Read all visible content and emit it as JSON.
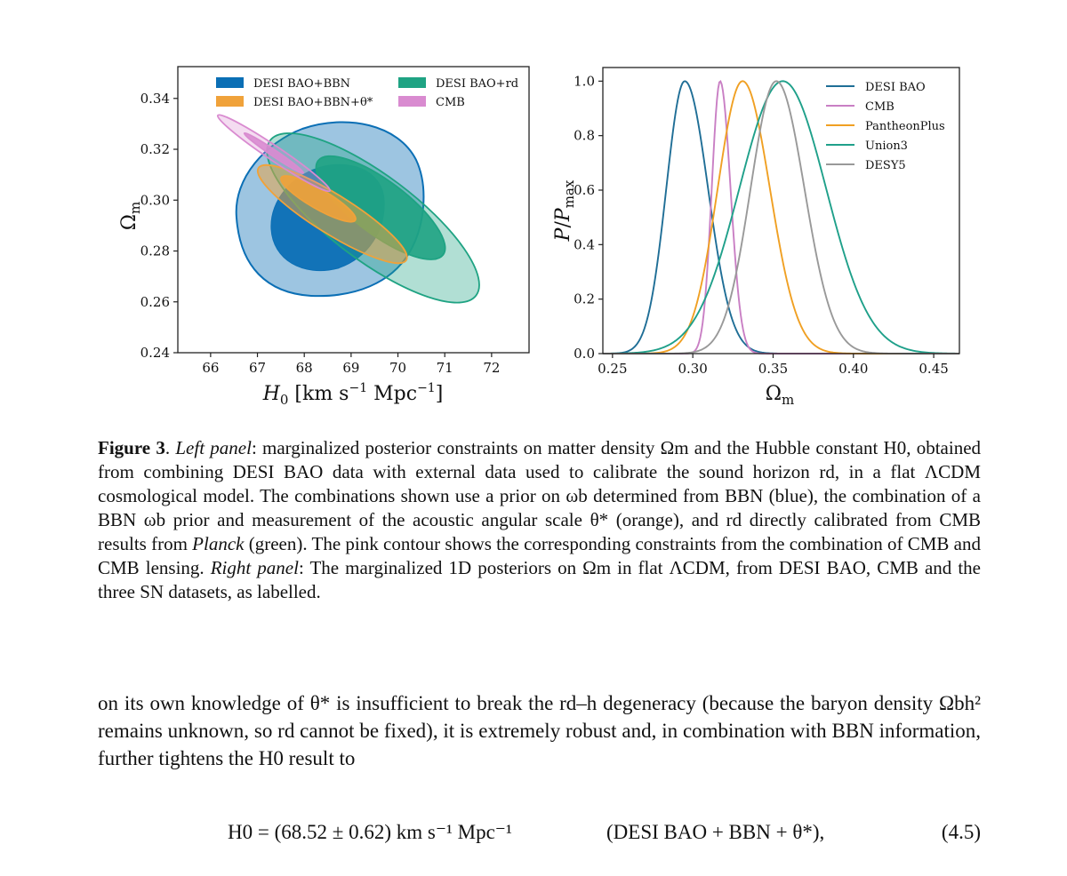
{
  "left_panel": {
    "xlabel": "H₀ [km s⁻¹ Mpc⁻¹]",
    "ylabel": "Ωm",
    "xticks": [
      "66",
      "67",
      "68",
      "69",
      "70",
      "71",
      "72"
    ],
    "yticks": [
      "0.24",
      "0.26",
      "0.28",
      "0.30",
      "0.32",
      "0.34"
    ],
    "legend": [
      "DESI BAO+BBN",
      "DESI BAO+BBN+θ*",
      "DESI BAO+rd",
      "CMB"
    ],
    "colors": {
      "blue": "#0b6fb5",
      "orange": "#f0a23a",
      "green": "#1fa383",
      "pink": "#d98bd0"
    }
  },
  "right_panel": {
    "xlabel": "Ωm",
    "ylabel": "P/Pmax",
    "xticks": [
      "0.25",
      "0.30",
      "0.35",
      "0.40",
      "0.45"
    ],
    "yticks": [
      "0.0",
      "0.2",
      "0.4",
      "0.6",
      "0.8",
      "1.0"
    ],
    "legend": [
      "DESI BAO",
      "CMB",
      "PantheonPlus",
      "Union3",
      "DESY5"
    ]
  },
  "chart_data": [
    {
      "type": "scatter",
      "subtype": "contour",
      "xlabel": "H0 [km s^-1 Mpc^-1]",
      "ylabel": "Ωm",
      "xlim": [
        65.3,
        72.8
      ],
      "ylim": [
        0.24,
        0.3525
      ],
      "series": [
        {
          "name": "DESI BAO+BBN",
          "color": "#0b6fb5",
          "center": [
            68.5,
            0.2955
          ],
          "h0_range_outer": [
            65.6,
            71.4
          ],
          "om_range_outer": [
            0.258,
            0.332
          ]
        },
        {
          "name": "DESI BAO+BBN+θ*",
          "color": "#f0a23a",
          "center": [
            68.52,
            0.298
          ],
          "h0_range_outer": [
            66.9,
            70.1
          ],
          "om_range_outer": [
            0.276,
            0.313
          ]
        },
        {
          "name": "DESI BAO+rd",
          "color": "#1fa383",
          "center": [
            69.4,
            0.293
          ],
          "h0_range_outer": [
            67.2,
            71.6
          ],
          "om_range_outer": [
            0.262,
            0.329
          ]
        },
        {
          "name": "CMB",
          "color": "#d98bd0",
          "center": [
            67.3,
            0.318
          ],
          "h0_range_outer": [
            66.0,
            68.6
          ],
          "om_range_outer": [
            0.302,
            0.334
          ]
        }
      ]
    },
    {
      "type": "line",
      "xlabel": "Ωm",
      "ylabel": "P/Pmax",
      "xlim": [
        0.244,
        0.466
      ],
      "ylim": [
        0.0,
        1.05
      ],
      "series": [
        {
          "name": "DESI BAO",
          "color": "#1f6e96",
          "peak": 0.295,
          "sigma_left": 0.0115,
          "sigma_right": 0.0145
        },
        {
          "name": "CMB",
          "color": "#c97fc4",
          "peak": 0.317,
          "sigma_left": 0.0052,
          "sigma_right": 0.0065
        },
        {
          "name": "PantheonPlus",
          "color": "#f0a023",
          "peak": 0.331,
          "sigma_left": 0.0155,
          "sigma_right": 0.017
        },
        {
          "name": "Union3",
          "color": "#1fa08a",
          "peak": 0.356,
          "sigma_left": 0.027,
          "sigma_right": 0.027
        },
        {
          "name": "DESY5",
          "color": "#999999",
          "peak": 0.352,
          "sigma_left": 0.016,
          "sigma_right": 0.0175
        }
      ]
    }
  ],
  "caption": {
    "figure_label": "Figure 3",
    "left_panel_label": "Left panel",
    "right_panel_label": "Right panel",
    "planck": "Planck",
    "part1": ": marginalized posterior constraints on matter density Ωm and the Hubble constant H0, obtained from combining DESI BAO data with external data used to calibrate the sound horizon rd, in a flat ΛCDM cosmological model. The combinations shown use a prior on ωb determined from BBN (blue), the combination of a BBN ωb prior and measurement of the acoustic angular scale θ* (orange), and rd directly calibrated from CMB results from ",
    "part2": " (green). The pink contour shows the corresponding constraints from the combination of CMB and CMB lensing.",
    "part3": ": The marginalized 1D posteriors on Ωm in flat ΛCDM, from DESI BAO, CMB and the three SN datasets, as labelled."
  },
  "body_text": "on its own knowledge of θ* is insufficient to break the rd–h degeneracy (because the baryon density Ωbh² remains unknown, so rd cannot be fixed), it is extremely robust and, in combination with BBN information, further tightens the H0 result to",
  "equation": {
    "main": "H0 = (68.52 ± 0.62) km s⁻¹ Mpc⁻¹",
    "label": "(DESI BAO + BBN + θ*),",
    "number": "(4.5)"
  }
}
